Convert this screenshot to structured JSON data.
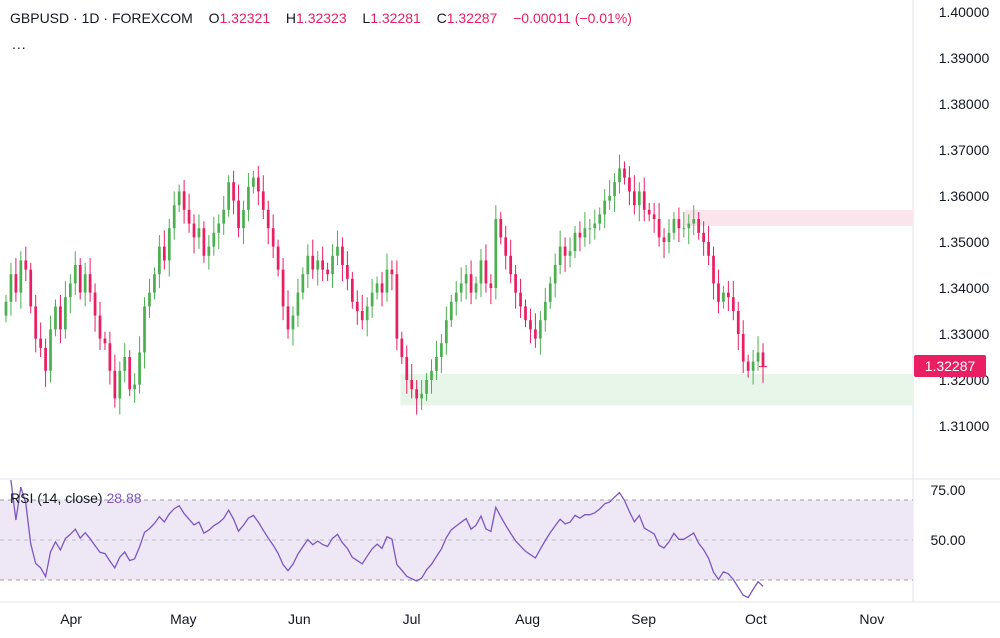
{
  "legend": {
    "symbol": "GBPUSD",
    "interval": "1D",
    "exchange": "FOREXCOM",
    "separator": "·",
    "open_label": "O",
    "open": "1.32321",
    "high_label": "H",
    "high": "1.32323",
    "low_label": "L",
    "low": "1.32281",
    "close_label": "C",
    "close": "1.32287",
    "change": "−0.00011",
    "change_pct": "(−0.01%)",
    "more": "..."
  },
  "last_price": "1.32287",
  "rsi": {
    "label": "RSI (14, close)",
    "value": "28.88"
  },
  "colors": {
    "up": "#4caf50",
    "down": "#e91e63",
    "rsi_line": "#7e57c2",
    "rsi_band": "#ede7f6",
    "supply_zone": "#fce4ec",
    "demand_zone": "#e8f5e9"
  },
  "chart_data": [
    {
      "type": "candlestick",
      "symbol": "GBPUSD",
      "y_axis": {
        "ticks": [
          "1.40000",
          "1.39000",
          "1.38000",
          "1.37000",
          "1.36000",
          "1.35000",
          "1.34000",
          "1.33000",
          "1.32000",
          "1.31000"
        ],
        "range": [
          1.3,
          1.4
        ]
      },
      "x_axis": {
        "ticks": [
          "Apr",
          "May",
          "Jun",
          "Jul",
          "Aug",
          "Sep",
          "Oct",
          "Nov"
        ],
        "range": [
          "2024-03-13",
          "2024-11-12"
        ]
      },
      "zones": [
        {
          "kind": "supply",
          "color": "#fce4ec",
          "price_range": [
            1.3535,
            1.357
          ],
          "from": "2024-09-12",
          "to": "2024-11-12"
        },
        {
          "kind": "demand",
          "color": "#e8f5e9",
          "price_range": [
            1.3145,
            1.3213
          ],
          "from": "2024-06-28",
          "to": "2024-11-12"
        }
      ],
      "closes": [
        1.337,
        1.343,
        1.339,
        1.346,
        1.344,
        1.336,
        1.329,
        1.327,
        1.322,
        1.331,
        1.336,
        1.331,
        1.338,
        1.341,
        1.345,
        1.339,
        1.343,
        1.339,
        1.334,
        1.329,
        1.328,
        1.322,
        1.316,
        1.322,
        1.325,
        1.318,
        1.319,
        1.326,
        1.336,
        1.339,
        1.343,
        1.349,
        1.346,
        1.353,
        1.358,
        1.361,
        1.357,
        1.354,
        1.351,
        1.353,
        1.347,
        1.349,
        1.352,
        1.354,
        1.357,
        1.363,
        1.359,
        1.353,
        1.357,
        1.362,
        1.364,
        1.361,
        1.357,
        1.353,
        1.349,
        1.344,
        1.336,
        1.331,
        1.334,
        1.339,
        1.343,
        1.347,
        1.344,
        1.346,
        1.344,
        1.343,
        1.347,
        1.349,
        1.345,
        1.342,
        1.337,
        1.335,
        1.333,
        1.336,
        1.339,
        1.341,
        1.339,
        1.344,
        1.343,
        1.329,
        1.325,
        1.32,
        1.318,
        1.316,
        1.317,
        1.32,
        1.322,
        1.325,
        1.328,
        1.333,
        1.337,
        1.339,
        1.341,
        1.343,
        1.339,
        1.341,
        1.346,
        1.341,
        1.34,
        1.355,
        1.351,
        1.347,
        1.343,
        1.339,
        1.336,
        1.333,
        1.331,
        1.329,
        1.333,
        1.337,
        1.341,
        1.345,
        1.349,
        1.347,
        1.348,
        1.352,
        1.351,
        1.353,
        1.353,
        1.354,
        1.356,
        1.359,
        1.36,
        1.363,
        1.366,
        1.364,
        1.361,
        1.358,
        1.361,
        1.357,
        1.356,
        1.355,
        1.351,
        1.35,
        1.352,
        1.355,
        1.353,
        1.353,
        1.354,
        1.355,
        1.352,
        1.35,
        1.347,
        1.341,
        1.337,
        1.339,
        1.338,
        1.335,
        1.33,
        1.324,
        1.322,
        1.324,
        1.326,
        1.3229
      ]
    },
    {
      "type": "line",
      "name": "RSI (14, close)",
      "y_axis": {
        "ticks": [
          "75.00",
          "50.00"
        ],
        "range": [
          20,
          80
        ]
      },
      "band": [
        30,
        70
      ],
      "midline": 50
    }
  ]
}
